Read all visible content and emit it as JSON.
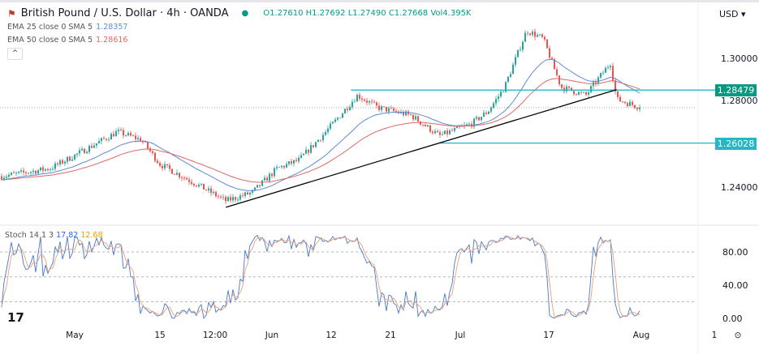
{
  "header": {
    "symbol": "British Pound / U.S. Dollar · 4h · OANDA",
    "open": "O1.27610",
    "high": "H1.27692",
    "low": "L1.27490",
    "close": "C1.27668",
    "volume": "Vol4.395K",
    "status_color": "#089981"
  },
  "indicators": [
    {
      "label": "EMA 25 close 0 SMA 5",
      "value": "1.28357",
      "color": "#5b8bd6"
    },
    {
      "label": "EMA 50 close 0 SMA 5",
      "value": "1.28616",
      "color": "#e06666"
    }
  ],
  "currency": "USD",
  "collapse_icon": "chevron-up-icon",
  "stoch": {
    "label": "Stoch 14 1 3",
    "k": "17.82",
    "d": "12.68",
    "k_color": "#2962ff",
    "d_color": "#ff9800"
  },
  "chart_data": {
    "type": "candlestick",
    "price_axis": {
      "ticks": [
        "1.30000",
        "1.28000",
        "1.24000"
      ],
      "range": [
        1.222,
        1.318
      ]
    },
    "x_ticks": [
      "May",
      "15",
      "12:00",
      "Jun",
      "12",
      "21",
      "Jul",
      "17",
      "Aug",
      "1"
    ],
    "price_path": [
      {
        "date": "Apr 19",
        "value": 1.2449
      },
      {
        "date": "Apr 27",
        "value": 1.2486
      },
      {
        "date": "May 2",
        "value": 1.2561
      },
      {
        "date": "May 8",
        "value": 1.2655
      },
      {
        "date": "May 12",
        "value": 1.2617
      },
      {
        "date": "May 15",
        "value": 1.2505
      },
      {
        "date": "May 20",
        "value": 1.2422
      },
      {
        "date": "May 25",
        "value": 1.2336
      },
      {
        "date": "May 29",
        "value": 1.2374
      },
      {
        "date": "Jun 2",
        "value": 1.2486
      },
      {
        "date": "Jun 6",
        "value": 1.2524
      },
      {
        "date": "Jun 11",
        "value": 1.2655
      },
      {
        "date": "Jun 16",
        "value": 1.2824
      },
      {
        "date": "Jun 19",
        "value": 1.2768
      },
      {
        "date": "Jun 24",
        "value": 1.273
      },
      {
        "date": "Jun 28",
        "value": 1.2636
      },
      {
        "date": "Jul 3",
        "value": 1.2692
      },
      {
        "date": "Jul 6",
        "value": 1.2749
      },
      {
        "date": "Jul 9",
        "value": 1.2861
      },
      {
        "date": "Jul 13",
        "value": 1.3123
      },
      {
        "date": "Jul 16",
        "value": 1.3086
      },
      {
        "date": "Jul 19",
        "value": 1.2861
      },
      {
        "date": "Jul 23",
        "value": 1.2824
      },
      {
        "date": "Jul 27",
        "value": 1.2974
      },
      {
        "date": "Jul 28",
        "value": 1.2805
      },
      {
        "date": "Aug 1",
        "value": 1.27668
      }
    ],
    "resistance": {
      "value": "1.28479",
      "color": "#089981"
    },
    "support": {
      "value": "1.26028",
      "color": "#00bcd4"
    },
    "trendline": {
      "from": {
        "date": "May 25",
        "value": 1.2306
      },
      "to": {
        "date": "Jul 28",
        "value": 1.285
      }
    },
    "last_price": 1.27668,
    "stoch_axis": {
      "ticks": [
        "80.00",
        "40.00",
        "0.00"
      ],
      "range": [
        0,
        100
      ]
    },
    "colors": {
      "up": "#26a69a",
      "down": "#ef5350",
      "ema25": "#5b8bd6",
      "ema50": "#e06666",
      "line": "#22b8c8"
    }
  }
}
